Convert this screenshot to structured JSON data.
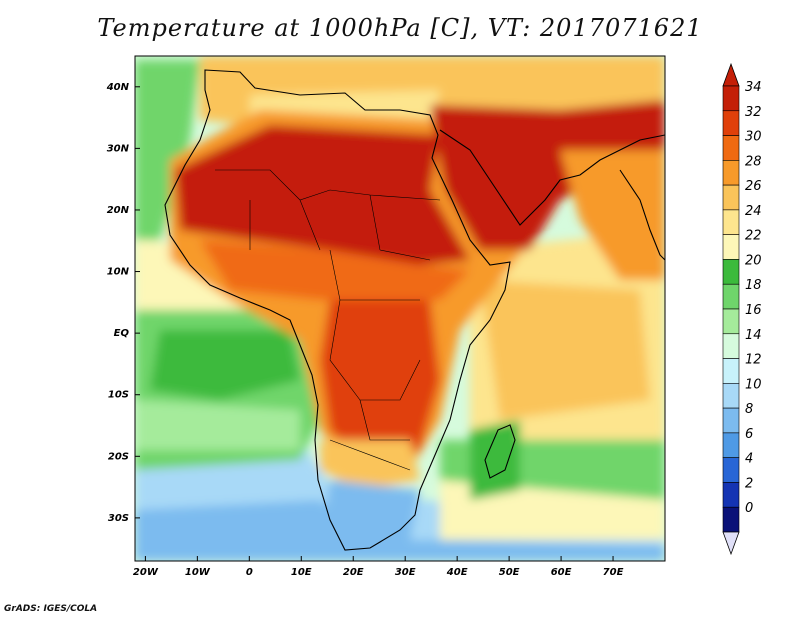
{
  "title": "Temperature at 1000hPa [C], VT: 2017071621",
  "credit": "GrADS: IGES/COLA",
  "map": {
    "lon_range": [
      -22,
      80
    ],
    "lat_range": [
      -37,
      45
    ],
    "lat_ticks": [
      {
        "value": 40,
        "label": "40N"
      },
      {
        "value": 30,
        "label": "30N"
      },
      {
        "value": 20,
        "label": "20N"
      },
      {
        "value": 10,
        "label": "10N"
      },
      {
        "value": 0,
        "label": "EQ"
      },
      {
        "value": -10,
        "label": "10S"
      },
      {
        "value": -20,
        "label": "20S"
      },
      {
        "value": -30,
        "label": "30S"
      }
    ],
    "lon_ticks": [
      {
        "value": -20,
        "label": "20W"
      },
      {
        "value": -10,
        "label": "10W"
      },
      {
        "value": 0,
        "label": "0"
      },
      {
        "value": 10,
        "label": "10E"
      },
      {
        "value": 20,
        "label": "20E"
      },
      {
        "value": 30,
        "label": "30E"
      },
      {
        "value": 40,
        "label": "40E"
      },
      {
        "value": 50,
        "label": "50E"
      },
      {
        "value": 60,
        "label": "60E"
      },
      {
        "value": 70,
        "label": "70E"
      }
    ]
  },
  "colorbar": {
    "labels": [
      "34",
      "32",
      "30",
      "28",
      "26",
      "24",
      "22",
      "20",
      "18",
      "16",
      "14",
      "12",
      "10",
      "8",
      "6",
      "4",
      "2",
      "0"
    ],
    "colors": [
      "#c41f08",
      "#e0400a",
      "#f06a12",
      "#f79a2a",
      "#fac45a",
      "#fde58e",
      "#fdf7b8",
      "#3cba3c",
      "#6fd56b",
      "#a5eb9b",
      "#d6fbdd",
      "#c8f2fb",
      "#a8d9f7",
      "#7cbbef",
      "#4f9ae5",
      "#2866d6",
      "#1434b3",
      "#0a1278"
    ],
    "top_arrow_color": "#c41f08",
    "bottom_arrow_color": "#e0e0f8"
  },
  "field_colors": {
    "sea_cool": "#7cbbef",
    "sea_cold": "#a8d9f7",
    "sea_mild": "#d6fbdd",
    "green": "#3cba3c",
    "light_green": "#6fd56b",
    "pale_green": "#a5eb9b",
    "cream": "#fdf7b8",
    "yellow": "#fde58e",
    "light_orange": "#fac45a",
    "orange": "#f79a2a",
    "dark_orange": "#f06a12",
    "red_orange": "#e0400a",
    "red": "#c41f08"
  }
}
